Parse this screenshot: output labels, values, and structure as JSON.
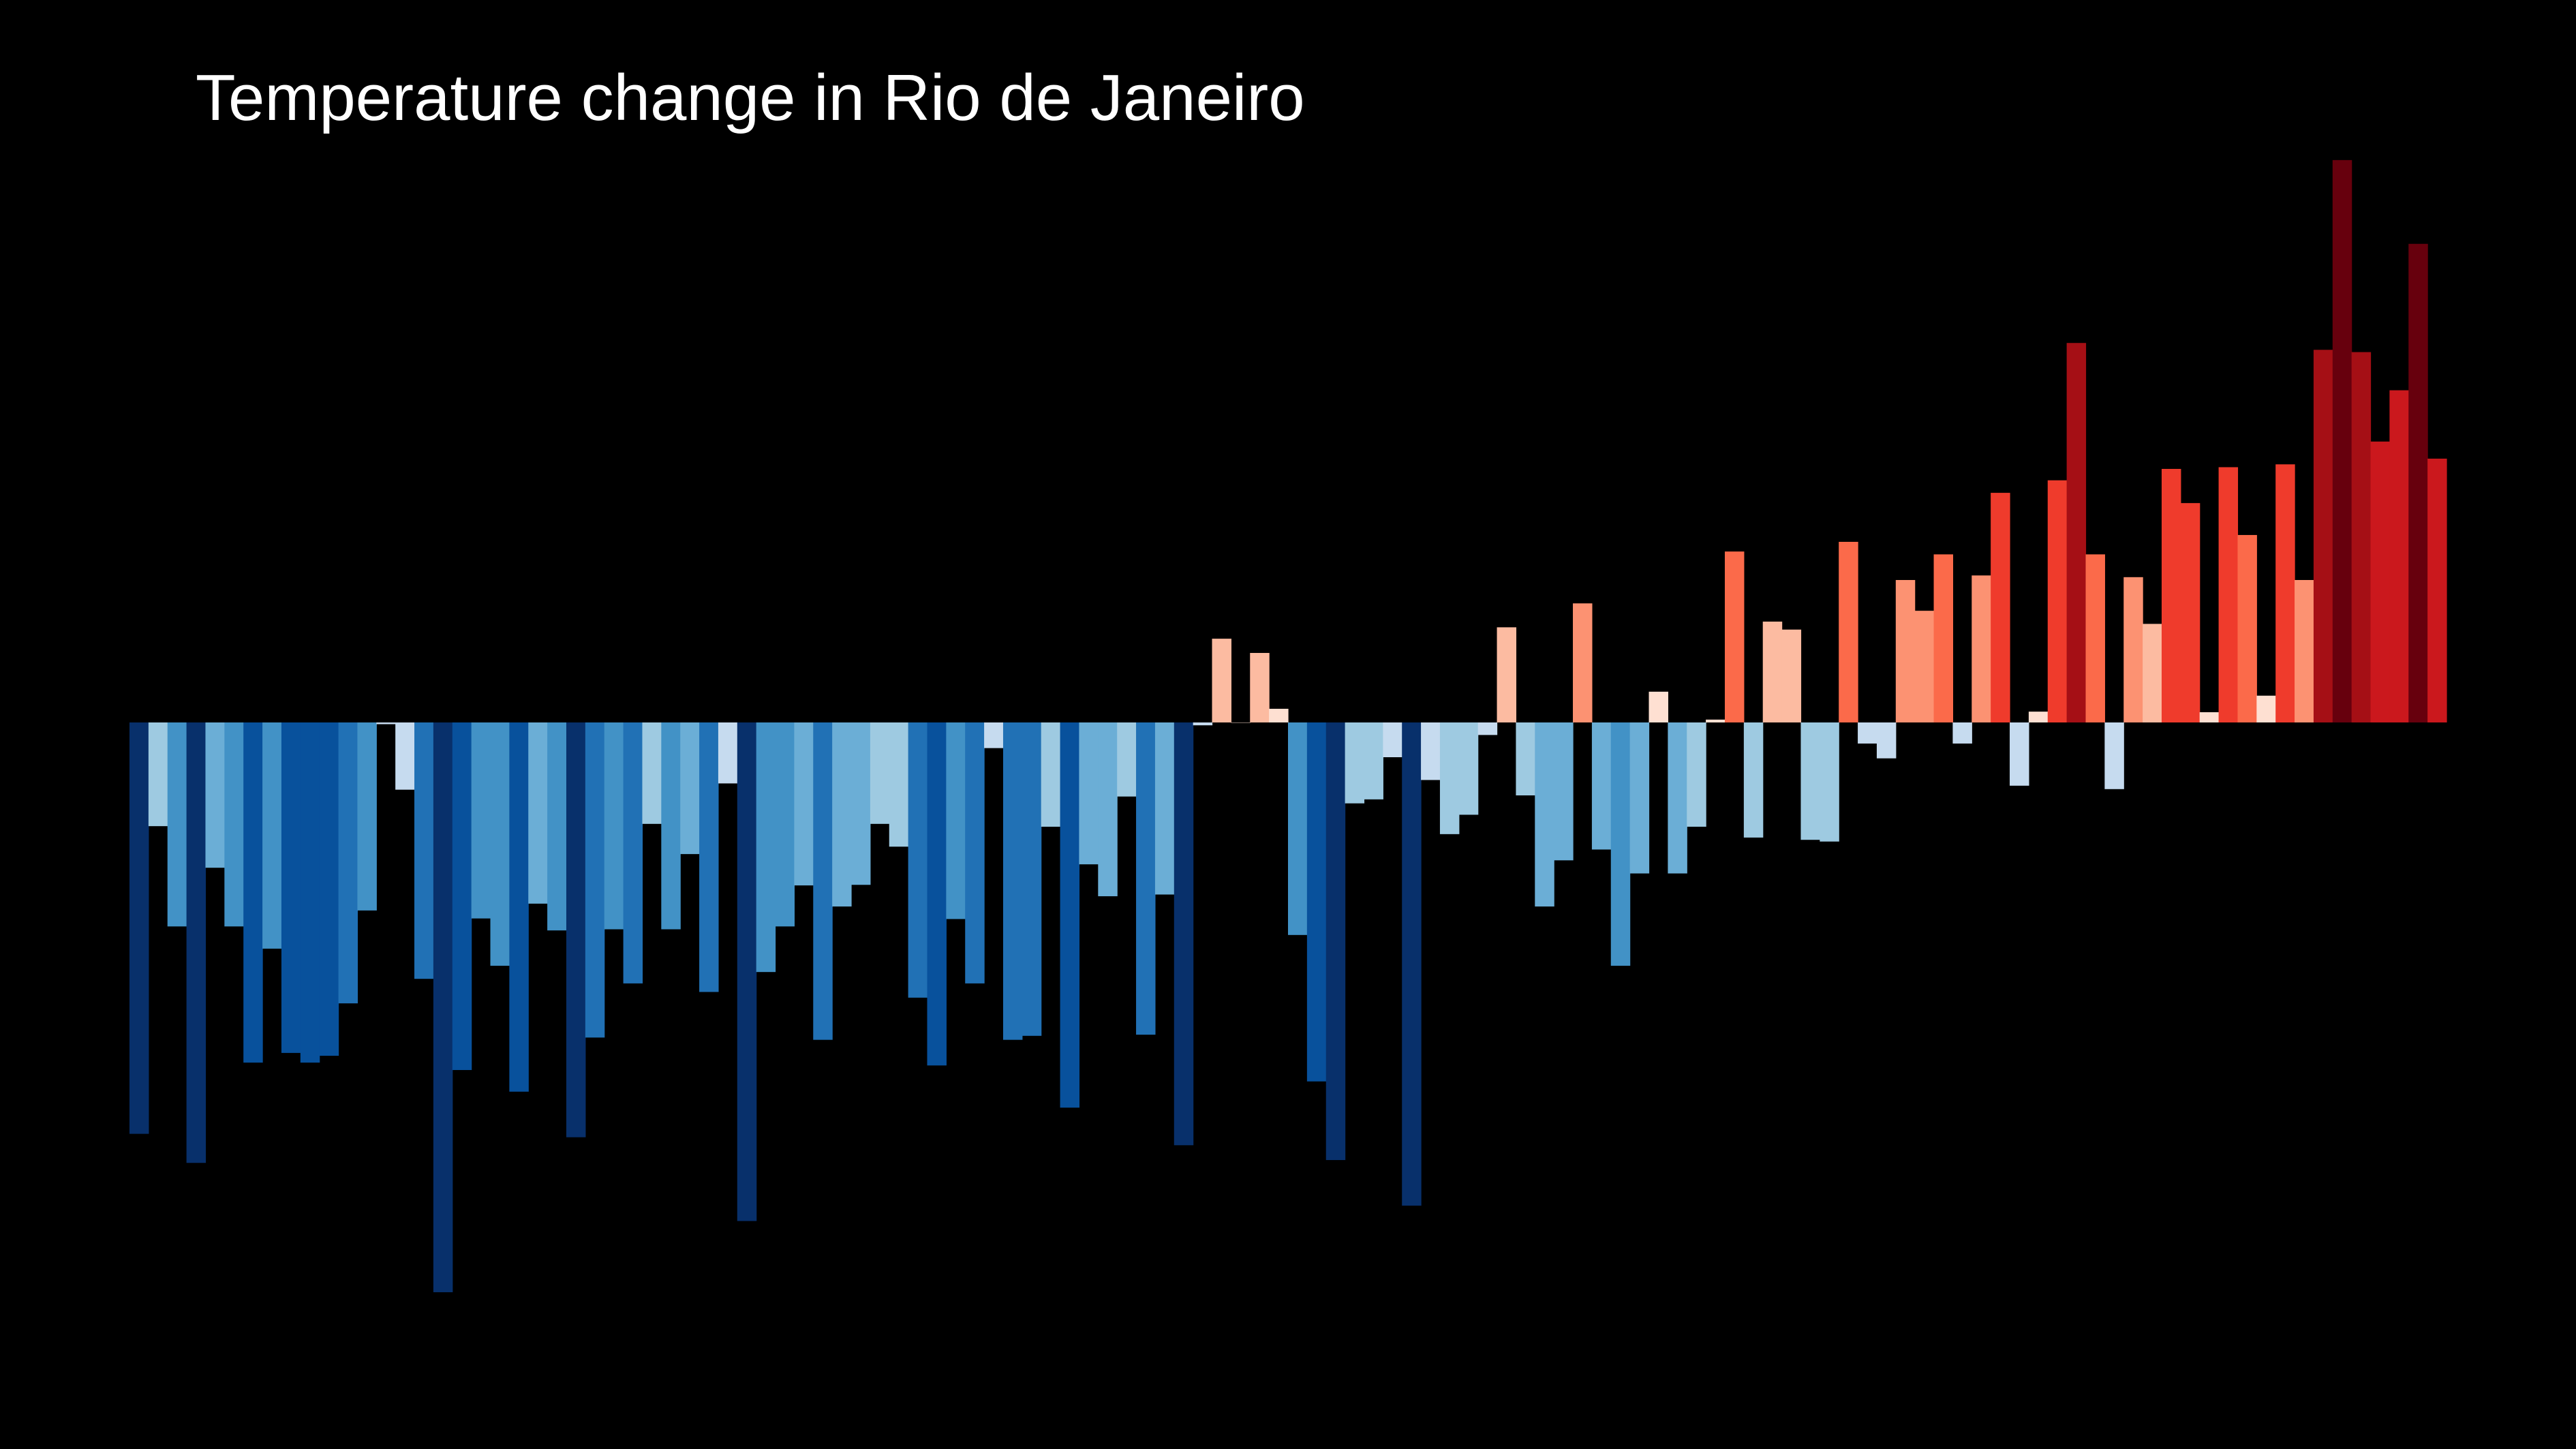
{
  "title": "Temperature change in Rio de Janeiro",
  "chart_data": {
    "type": "bar",
    "title": "Temperature change in Rio de Janeiro",
    "xlabel": "",
    "ylabel": "",
    "grid": false,
    "legend": "none",
    "ylim": [
      -1.0,
      1.0
    ],
    "colors": {
      "background": "#000000",
      "cold_extreme": "#08306b",
      "cold": "#08519c",
      "cool": "#2171b5",
      "cool_light": "#4292c6",
      "blue_mid": "#6baed6",
      "blue_pale": "#9ecae1",
      "blue_faint": "#c6dbef",
      "warm_faint": "#fee0d2",
      "warm_pale": "#fcbba1",
      "warm_light": "#fc9272",
      "warm_mid": "#fb6a4a",
      "warm": "#ef3b2c",
      "hot": "#cb181d",
      "hot_strong": "#a50f15",
      "hot_extreme": "#67000d"
    },
    "values": [
      -0.722,
      -0.182,
      -0.358,
      -0.773,
      -0.255,
      -0.358,
      -0.597,
      -0.397,
      -0.58,
      -0.597,
      -0.585,
      -0.493,
      -0.33,
      -0.003,
      -0.118,
      -0.45,
      -1.0,
      -0.61,
      -0.344,
      -0.427,
      -0.648,
      -0.318,
      -0.365,
      -0.728,
      -0.553,
      -0.363,
      -0.458,
      -0.178,
      -0.363,
      -0.231,
      -0.473,
      -0.107,
      -0.875,
      -0.438,
      -0.358,
      -0.286,
      -0.557,
      -0.323,
      -0.285,
      -0.178,
      -0.218,
      -0.483,
      -0.602,
      -0.345,
      -0.458,
      -0.045,
      -0.557,
      -0.55,
      -0.183,
      -0.676,
      -0.249,
      -0.305,
      -0.13,
      -0.548,
      -0.302,
      -0.742,
      -0.005,
      0.147,
      0.0,
      0.122,
      0.024,
      -0.373,
      -0.63,
      -0.768,
      -0.142,
      -0.135,
      -0.061,
      -0.848,
      -0.101,
      -0.196,
      -0.162,
      -0.022,
      0.167,
      -0.128,
      -0.323,
      -0.242,
      0.209,
      -0.223,
      -0.427,
      -0.265,
      0.054,
      -0.265,
      -0.183,
      0.005,
      0.3,
      -0.202,
      0.177,
      0.163,
      -0.206,
      -0.209,
      0.317,
      -0.037,
      -0.063,
      0.25,
      0.196,
      0.295,
      -0.037,
      0.258,
      0.403,
      -0.111,
      0.019,
      0.425,
      0.666,
      0.295,
      -0.117,
      0.255,
      0.173,
      0.445,
      0.385,
      0.018,
      0.448,
      0.329,
      0.047,
      0.453,
      0.25,
      0.654,
      0.987,
      0.65,
      0.493,
      0.583,
      0.84,
      0.463
    ]
  }
}
